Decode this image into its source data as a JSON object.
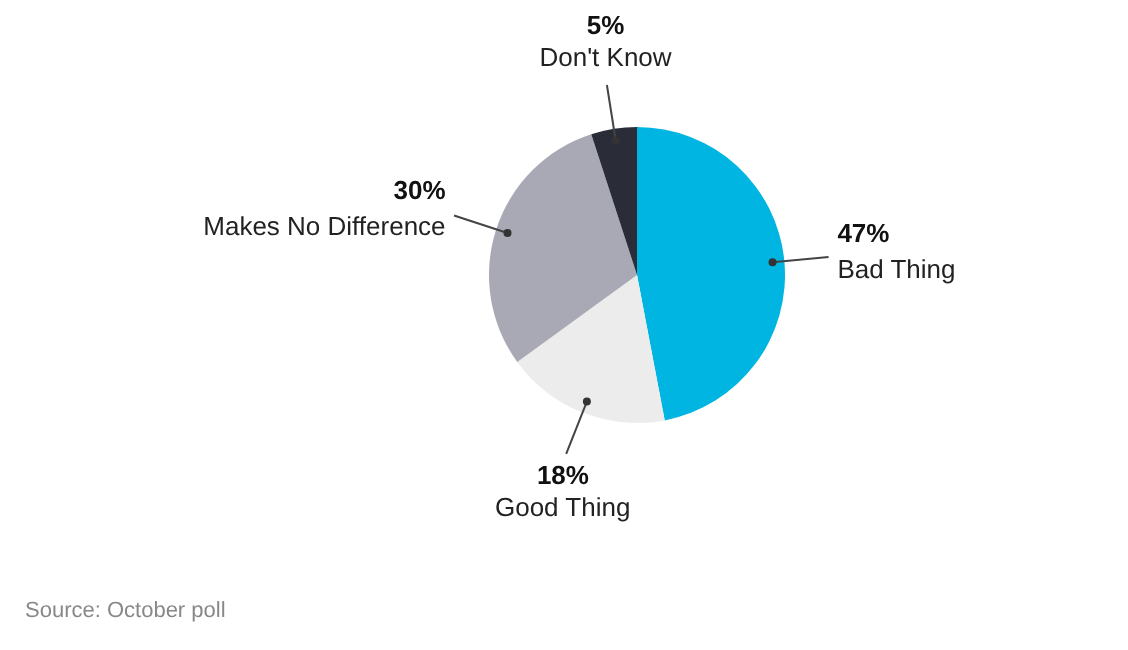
{
  "chart_data": {
    "type": "pie",
    "categories": [
      "Bad Thing",
      "Good Thing",
      "Makes No Difference",
      "Don't Know"
    ],
    "values": [
      47,
      18,
      30,
      5
    ],
    "colors": [
      "#00b5e2",
      "#ececec",
      "#a9a8b5",
      "#2a2c38"
    ],
    "value_labels": [
      "47%",
      "18%",
      "30%",
      "5%"
    ],
    "annotations": [
      "Source: October poll"
    ]
  }
}
